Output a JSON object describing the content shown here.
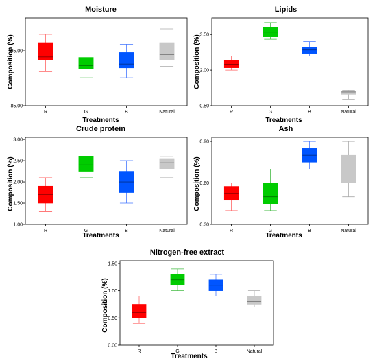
{
  "chart_data": [
    {
      "type": "boxplot",
      "title": "Moisture",
      "xlabel": "Treatments",
      "ylabel": "Composition (%)",
      "categories": [
        "R",
        "G",
        "B",
        "Natural"
      ],
      "yticks": [
        "85.00",
        "95.00"
      ],
      "ylim": [
        85.0,
        101.0
      ],
      "yticks_values": [
        85.0,
        95.0
      ],
      "colors": [
        "#ff0000",
        "#00cc00",
        "#0055ff",
        "#c8c8c8"
      ],
      "whisker_colors": [
        "#ff6666",
        "#44bb44",
        "#4477ff",
        "#aaaaaa"
      ],
      "boxes": [
        {
          "min": 91.2,
          "q1": 93.3,
          "median": 93.9,
          "q3": 96.5,
          "max": 98.0
        },
        {
          "min": 90.1,
          "q1": 91.7,
          "median": 92.3,
          "q3": 93.8,
          "max": 95.3
        },
        {
          "min": 90.1,
          "q1": 91.9,
          "median": 92.6,
          "q3": 94.7,
          "max": 96.2
        },
        {
          "min": 92.2,
          "q1": 93.3,
          "median": 94.3,
          "q3": 96.5,
          "max": 99.0
        }
      ]
    },
    {
      "type": "boxplot",
      "title": "Lipids",
      "xlabel": "Treatments",
      "ylabel": "Composition (%)",
      "categories": [
        "R",
        "G",
        "B",
        "Natural"
      ],
      "yticks": [
        "0.50",
        "2.00",
        "3.50"
      ],
      "ylim": [
        0.5,
        4.2
      ],
      "yticks_values": [
        0.5,
        2.0,
        3.5
      ],
      "colors": [
        "#ff0000",
        "#00cc00",
        "#0055ff",
        "#c8c8c8"
      ],
      "whisker_colors": [
        "#ff6666",
        "#44bb44",
        "#4477ff",
        "#aaaaaa"
      ],
      "boxes": [
        {
          "min": 2.0,
          "q1": 2.1,
          "median": 2.25,
          "q3": 2.4,
          "max": 2.6
        },
        {
          "min": 3.3,
          "q1": 3.4,
          "median": 3.6,
          "q3": 3.8,
          "max": 4.0
        },
        {
          "min": 2.6,
          "q1": 2.7,
          "median": 2.85,
          "q3": 2.95,
          "max": 3.2
        },
        {
          "min": 0.75,
          "q1": 0.98,
          "median": 1.08,
          "q3": 1.1,
          "max": 1.15
        }
      ]
    },
    {
      "type": "boxplot",
      "title": "Crude protein",
      "xlabel": "Treatments",
      "ylabel": "Composition (%)",
      "categories": [
        "R",
        "G",
        "B",
        "Natural"
      ],
      "yticks": [
        "1.00",
        "1.50",
        "2.00",
        "2.50",
        "3.00"
      ],
      "ylim": [
        1.0,
        3.05
      ],
      "yticks_values": [
        1.0,
        1.5,
        2.0,
        2.5,
        3.0
      ],
      "colors": [
        "#ff0000",
        "#00cc00",
        "#0055ff",
        "#c8c8c8"
      ],
      "whisker_colors": [
        "#ff6666",
        "#44bb44",
        "#4477ff",
        "#aaaaaa"
      ],
      "boxes": [
        {
          "min": 1.3,
          "q1": 1.5,
          "median": 1.7,
          "q3": 1.9,
          "max": 2.1
        },
        {
          "min": 2.1,
          "q1": 2.25,
          "median": 2.4,
          "q3": 2.6,
          "max": 2.8
        },
        {
          "min": 1.5,
          "q1": 1.75,
          "median": 2.0,
          "q3": 2.25,
          "max": 2.5
        },
        {
          "min": 2.1,
          "q1": 2.3,
          "median": 2.45,
          "q3": 2.55,
          "max": 2.6
        }
      ]
    },
    {
      "type": "boxplot",
      "title": "Ash",
      "xlabel": "Treatments",
      "ylabel": "Composition (%)",
      "categories": [
        "R",
        "G",
        "B",
        "Natural"
      ],
      "yticks": [
        "0.30",
        "0.60",
        "0.90"
      ],
      "ylim": [
        0.3,
        0.93
      ],
      "yticks_values": [
        0.3,
        0.6,
        0.9
      ],
      "colors": [
        "#ff0000",
        "#00cc00",
        "#0055ff",
        "#c8c8c8"
      ],
      "whisker_colors": [
        "#ff6666",
        "#44bb44",
        "#4477ff",
        "#aaaaaa"
      ],
      "boxes": [
        {
          "min": 0.4,
          "q1": 0.475,
          "median": 0.525,
          "q3": 0.575,
          "max": 0.6
        },
        {
          "min": 0.4,
          "q1": 0.45,
          "median": 0.5,
          "q3": 0.6,
          "max": 0.7
        },
        {
          "min": 0.7,
          "q1": 0.75,
          "median": 0.8,
          "q3": 0.85,
          "max": 0.9
        },
        {
          "min": 0.5,
          "q1": 0.6,
          "median": 0.7,
          "q3": 0.8,
          "max": 0.9
        }
      ]
    },
    {
      "type": "boxplot",
      "title": "Nitrogen-free extract",
      "xlabel": "Treatments",
      "ylabel": "Composition (%)",
      "categories": [
        "R",
        "G",
        "B",
        "Natural"
      ],
      "yticks": [
        "0.00",
        "0.50",
        "1.00",
        "1.50"
      ],
      "ylim": [
        0.0,
        1.55
      ],
      "yticks_values": [
        0.0,
        0.5,
        1.0,
        1.5
      ],
      "colors": [
        "#ff0000",
        "#00cc00",
        "#0055ff",
        "#c8c8c8"
      ],
      "whisker_colors": [
        "#ff6666",
        "#44bb44",
        "#4477ff",
        "#aaaaaa"
      ],
      "boxes": [
        {
          "min": 0.4,
          "q1": 0.5,
          "median": 0.6,
          "q3": 0.75,
          "max": 0.9
        },
        {
          "min": 1.0,
          "q1": 1.1,
          "median": 1.2,
          "q3": 1.3,
          "max": 1.4
        },
        {
          "min": 0.9,
          "q1": 1.0,
          "median": 1.1,
          "q3": 1.2,
          "max": 1.3
        },
        {
          "min": 0.7,
          "q1": 0.75,
          "median": 0.8,
          "q3": 0.9,
          "max": 1.0
        }
      ]
    }
  ]
}
